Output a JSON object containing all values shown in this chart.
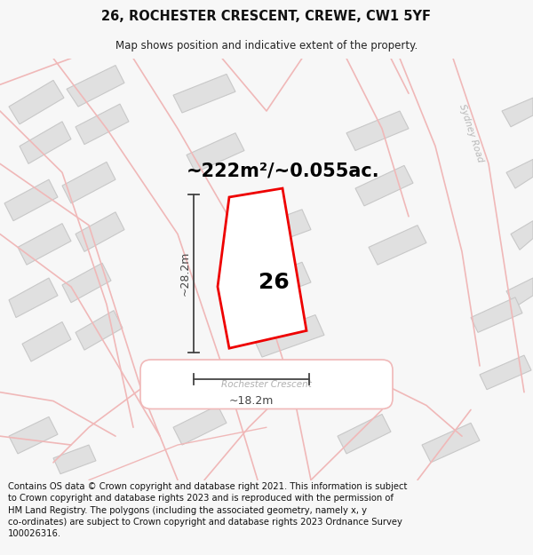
{
  "title": "26, ROCHESTER CRESCENT, CREWE, CW1 5YF",
  "subtitle": "Map shows position and indicative extent of the property.",
  "area_text": "~222m²/~0.055ac.",
  "width_label": "~18.2m",
  "height_label": "~28.2m",
  "house_number": "26",
  "footnote": "Contains OS data © Crown copyright and database right 2021. This information is subject to Crown copyright and database rights 2023 and is reproduced with the permission of HM Land Registry. The polygons (including the associated geometry, namely x, y co-ordinates) are subject to Crown copyright and database rights 2023 Ordnance Survey 100026316.",
  "bg_color": "#f7f7f7",
  "map_bg": "#ffffff",
  "road_color": "#f0b8b8",
  "road_fill": "#f8e8e8",
  "building_color": "#e0e0e0",
  "building_edge": "#c8c8c8",
  "highlight_color": "#ee0000",
  "dim_color": "#444444",
  "road_label_color": "#b0b0b0",
  "sydney_road_color": "#b8b8b8",
  "title_fontsize": 10.5,
  "subtitle_fontsize": 8.5,
  "area_fontsize": 15,
  "dim_fontsize": 9,
  "house_num_fontsize": 18,
  "footnote_fontsize": 7.2
}
